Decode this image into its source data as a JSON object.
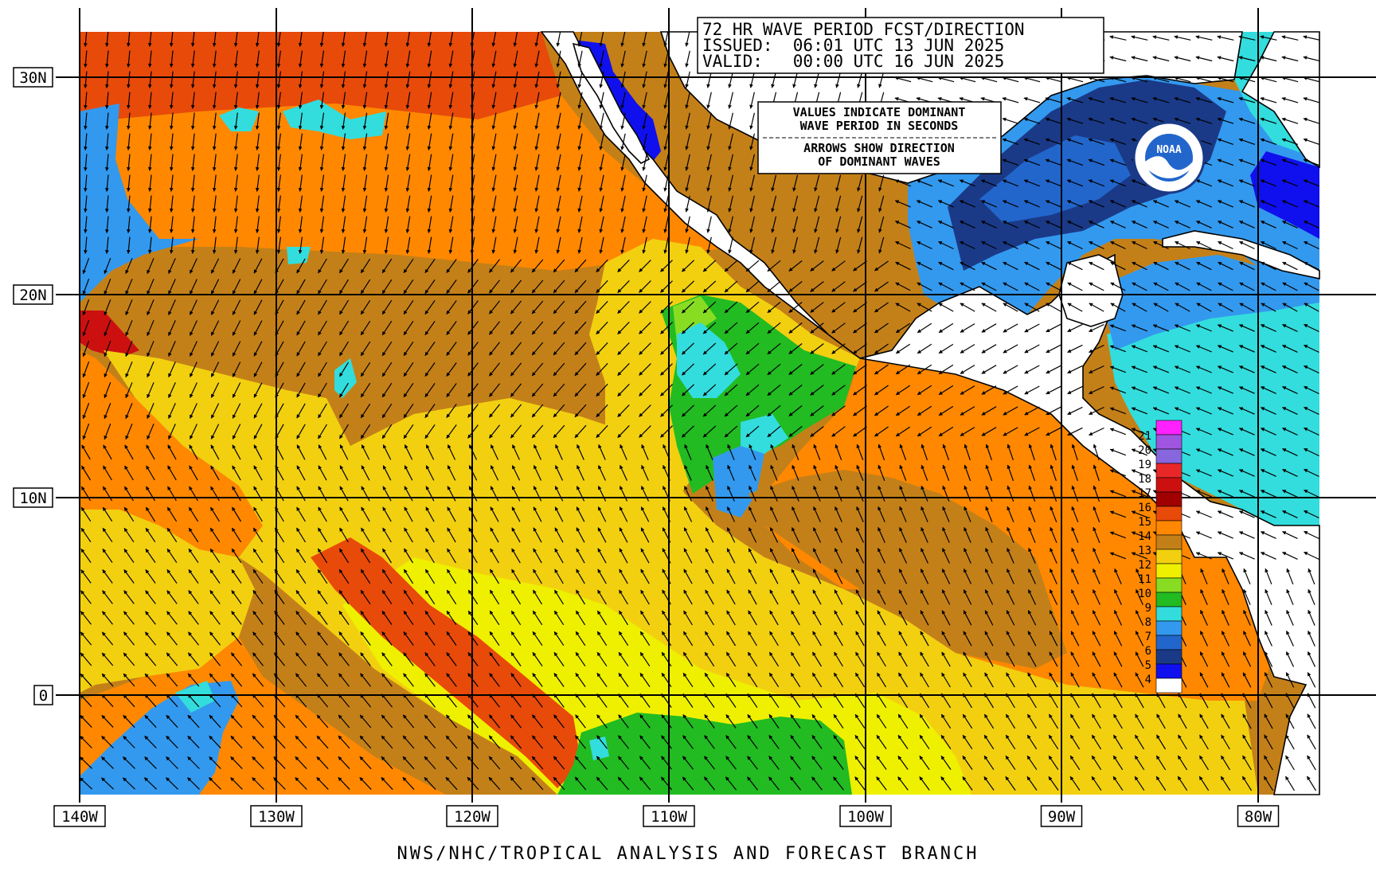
{
  "header": {
    "line1": "72 HR WAVE PERIOD FCST/DIRECTION",
    "line2": "ISSUED:  06:01 UTC 13 JUN 2025",
    "line3": "VALID:   00:00 UTC 16 JUN 2025"
  },
  "note": {
    "line1": "VALUES INDICATE DOMINANT",
    "line2": "WAVE PERIOD IN SECONDS",
    "line3": "ARROWS SHOW DIRECTION",
    "line4": "OF DOMINANT WAVES"
  },
  "logo": {
    "text": "NOAA"
  },
  "latitudes": [
    "30N",
    "20N",
    "10N",
    "0"
  ],
  "longitudes": [
    "140W",
    "130W",
    "120W",
    "110W",
    "100W",
    "90W",
    "80W"
  ],
  "legend": {
    "labels": [
      "21",
      "20",
      "19",
      "18",
      "17",
      "16",
      "15",
      "14",
      "13",
      "12",
      "11",
      "10",
      "9",
      "8",
      "7",
      "6",
      "5",
      "4"
    ],
    "colors": [
      "#ff22ff",
      "#a055e0",
      "#8866dd",
      "#e82828",
      "#cc1010",
      "#a00000",
      "#e84a0a",
      "#ff8800",
      "#c48018",
      "#f2d010",
      "#eef000",
      "#88dd22",
      "#22bb22",
      "#33dddd",
      "#3399ee",
      "#2266cc",
      "#1a3a88",
      "#1010ee"
    ]
  },
  "footer": "NWS/NHC/TROPICAL ANALYSIS AND FORECAST BRANCH",
  "colors": {
    "ocean_default": "#c48018",
    "land": "#ffffff",
    "grid": "#000000",
    "arrow": "#000000"
  }
}
